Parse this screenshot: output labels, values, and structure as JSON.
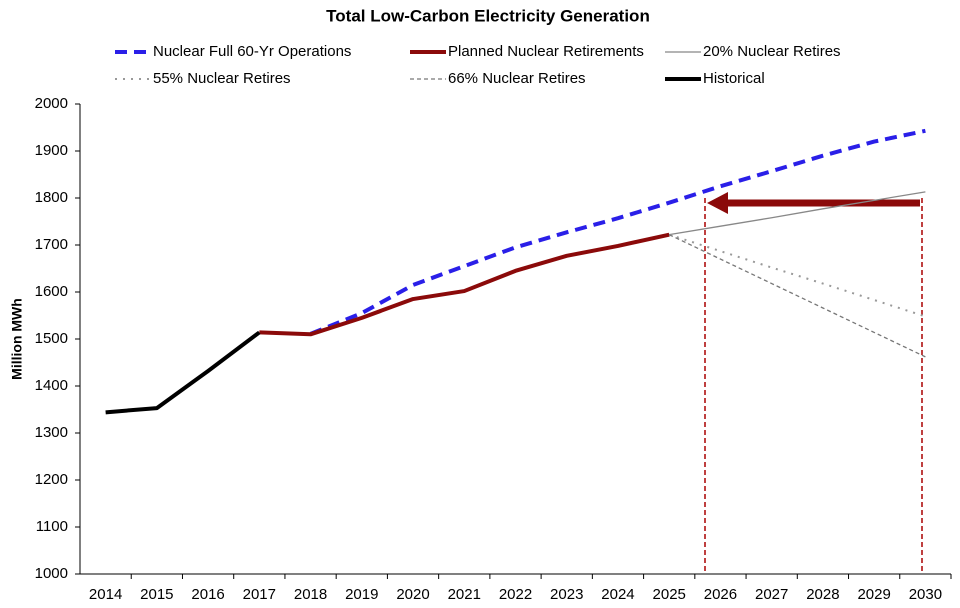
{
  "chart_data": {
    "type": "line",
    "title": "Total Low-Carbon Electricity Generation",
    "y_label": "Million MWh",
    "categories": [
      "2014",
      "2015",
      "2016",
      "2017",
      "2018",
      "2019",
      "2020",
      "2021",
      "2022",
      "2023",
      "2024",
      "2025",
      "2026",
      "2027",
      "2028",
      "2029",
      "2030"
    ],
    "series": [
      {
        "name": "Nuclear Full 60-Yr Operations",
        "color": "#2a1fe8",
        "style": "dashed",
        "width": 4,
        "values": [
          null,
          null,
          null,
          null,
          1511,
          1555,
          1615,
          1655,
          1695,
          1727,
          1757,
          1790,
          1825,
          1857,
          1890,
          1920,
          1943
        ]
      },
      {
        "name": "Planned Nuclear Retirements",
        "color": "#8b0a0a",
        "style": "solid",
        "width": 4,
        "values": [
          null,
          null,
          null,
          1514,
          1510,
          1545,
          1585,
          1602,
          1645,
          1677,
          1698,
          1722,
          null,
          null,
          null,
          null,
          null
        ]
      },
      {
        "name": "20% Nuclear Retires",
        "color": "#888888",
        "style": "solid",
        "width": 1.3,
        "values": [
          null,
          null,
          null,
          null,
          null,
          null,
          null,
          null,
          null,
          null,
          null,
          1722,
          1740,
          1758,
          1777,
          1795,
          1813
        ]
      },
      {
        "name": "55% Nuclear Retires",
        "color": "#999999",
        "style": "dotted",
        "width": 2,
        "values": [
          null,
          null,
          null,
          null,
          null,
          null,
          null,
          null,
          null,
          null,
          null,
          1722,
          1687,
          1652,
          1618,
          1583,
          1548
        ]
      },
      {
        "name": "66% Nuclear Retires",
        "color": "#777777",
        "style": "dashed-thin",
        "width": 1.3,
        "values": [
          null,
          null,
          null,
          null,
          null,
          null,
          null,
          null,
          null,
          null,
          null,
          1722,
          1670,
          1618,
          1566,
          1514,
          1462
        ]
      },
      {
        "name": "Historical",
        "color": "#000000",
        "style": "solid",
        "width": 4,
        "values": [
          1344,
          1353,
          1432,
          1514,
          null,
          null,
          null,
          null,
          null,
          null,
          null,
          null,
          null,
          null,
          null,
          null,
          null
        ]
      }
    ],
    "ylim": [
      1000,
      2000
    ],
    "yticks": [
      1000,
      1100,
      1200,
      1300,
      1400,
      1500,
      1600,
      1700,
      1800,
      1900,
      2000
    ],
    "grid": false,
    "legend": "top"
  }
}
